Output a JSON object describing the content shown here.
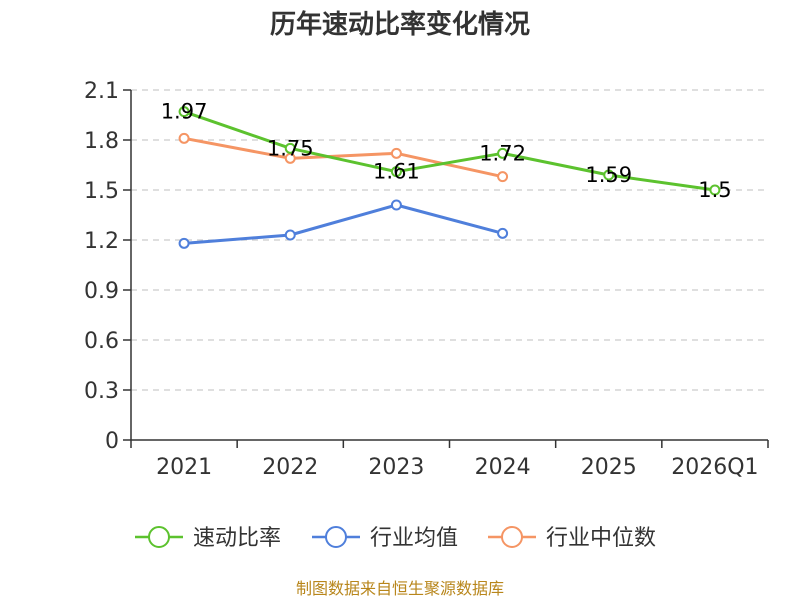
{
  "chart_data": {
    "type": "line",
    "title": "历年速动比率变化情况",
    "categories": [
      "2021",
      "2022",
      "2023",
      "2024",
      "2025",
      "2026Q1"
    ],
    "ylim": [
      0,
      2.1
    ],
    "yticks": [
      "0",
      "0.3",
      "0.6",
      "0.9",
      "1.2",
      "1.5",
      "1.8",
      "2.1"
    ],
    "grid": true,
    "legend_position": "bottom",
    "series": [
      {
        "name": "速动比率",
        "color": "#5cc22e",
        "values": [
          1.97,
          1.75,
          1.61,
          1.72,
          1.59,
          1.5
        ],
        "labels": [
          "1.97",
          "1.75",
          "1.61",
          "1.72",
          "1.59",
          "1.5"
        ]
      },
      {
        "name": "行业均值",
        "color": "#4f7fdb",
        "values": [
          1.18,
          1.23,
          1.41,
          1.24,
          null,
          null
        ]
      },
      {
        "name": "行业中位数",
        "color": "#f59564",
        "values": [
          1.81,
          1.69,
          1.72,
          1.58,
          null,
          null
        ]
      }
    ]
  },
  "footer": {
    "source": "制图数据来自恒生聚源数据库"
  }
}
